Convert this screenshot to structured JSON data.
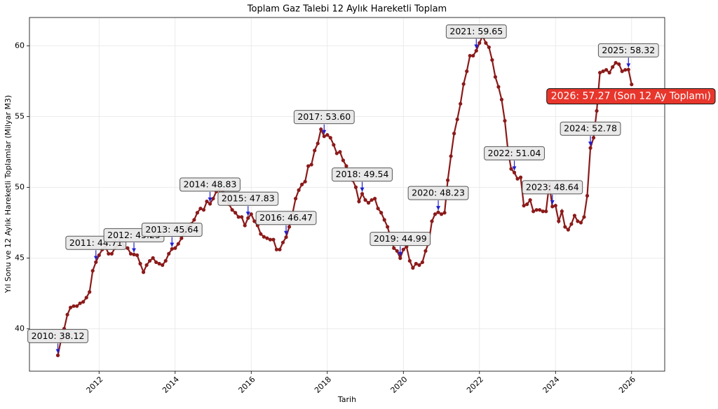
{
  "chart_data": {
    "type": "line",
    "title": "Toplam Gaz Talebi 12 Aylık Hareketli Toplam",
    "x_label": "Tarih",
    "y_label": "Yıl Sonu ve 12 Aylık Hareketli Toplamlar (Milyar M3)",
    "color": "#8b1a1a",
    "grid": true,
    "xlim": [
      2010.17,
      2026.87
    ],
    "ylim": [
      37,
      62
    ],
    "xticks": [
      2012,
      2014,
      2016,
      2018,
      2020,
      2022,
      2024,
      2026
    ],
    "yticks": [
      40,
      45,
      50,
      55,
      60
    ],
    "x": [
      2010.917,
      2011,
      2011.083,
      2011.167,
      2011.25,
      2011.333,
      2011.417,
      2011.5,
      2011.583,
      2011.667,
      2011.75,
      2011.833,
      2011.917,
      2012,
      2012.083,
      2012.167,
      2012.25,
      2012.333,
      2012.417,
      2012.5,
      2012.583,
      2012.667,
      2012.75,
      2012.833,
      2012.917,
      2013,
      2013.083,
      2013.167,
      2013.25,
      2013.333,
      2013.417,
      2013.5,
      2013.583,
      2013.667,
      2013.75,
      2013.833,
      2013.917,
      2014,
      2014.083,
      2014.167,
      2014.25,
      2014.333,
      2014.417,
      2014.5,
      2014.583,
      2014.667,
      2014.75,
      2014.833,
      2014.917,
      2015,
      2015.083,
      2015.167,
      2015.25,
      2015.333,
      2015.417,
      2015.5,
      2015.583,
      2015.667,
      2015.75,
      2015.833,
      2015.917,
      2016,
      2016.083,
      2016.167,
      2016.25,
      2016.333,
      2016.417,
      2016.5,
      2016.583,
      2016.667,
      2016.75,
      2016.833,
      2016.917,
      2017,
      2017.083,
      2017.167,
      2017.25,
      2017.333,
      2017.417,
      2017.5,
      2017.583,
      2017.667,
      2017.75,
      2017.833,
      2017.917,
      2018,
      2018.083,
      2018.167,
      2018.25,
      2018.333,
      2018.417,
      2018.5,
      2018.583,
      2018.667,
      2018.75,
      2018.833,
      2018.917,
      2019,
      2019.083,
      2019.167,
      2019.25,
      2019.333,
      2019.417,
      2019.5,
      2019.583,
      2019.667,
      2019.75,
      2019.833,
      2019.917,
      2020,
      2020.083,
      2020.167,
      2020.25,
      2020.333,
      2020.417,
      2020.5,
      2020.583,
      2020.667,
      2020.75,
      2020.833,
      2020.917,
      2021,
      2021.083,
      2021.167,
      2021.25,
      2021.333,
      2021.417,
      2021.5,
      2021.583,
      2021.667,
      2021.75,
      2021.833,
      2021.917,
      2022,
      2022.083,
      2022.167,
      2022.25,
      2022.333,
      2022.417,
      2022.5,
      2022.583,
      2022.667,
      2022.75,
      2022.833,
      2022.917,
      2023,
      2023.083,
      2023.167,
      2023.25,
      2023.333,
      2023.417,
      2023.5,
      2023.583,
      2023.667,
      2023.75,
      2023.833,
      2023.917,
      2024,
      2024.083,
      2024.167,
      2024.25,
      2024.333,
      2024.417,
      2024.5,
      2024.583,
      2024.667,
      2024.75,
      2024.833,
      2024.917,
      2025,
      2025.083,
      2025.167,
      2025.25,
      2025.333,
      2025.417,
      2025.5,
      2025.583,
      2025.667,
      2025.75,
      2025.833,
      2025.917,
      2026
    ],
    "values": [
      38.12,
      39.2,
      40.0,
      41.0,
      41.5,
      41.6,
      41.6,
      41.8,
      41.9,
      42.2,
      42.6,
      44.1,
      44.71,
      45.2,
      45.6,
      45.8,
      45.3,
      45.3,
      45.7,
      45.9,
      46.2,
      45.8,
      45.7,
      45.3,
      45.25,
      45.2,
      44.6,
      44.0,
      44.5,
      44.8,
      45.0,
      44.7,
      44.6,
      44.5,
      44.8,
      45.3,
      45.64,
      45.7,
      46.0,
      46.4,
      46.8,
      47.2,
      47.4,
      47.7,
      48.2,
      48.5,
      48.4,
      49.0,
      48.83,
      49.2,
      49.7,
      49.8,
      49.7,
      49.3,
      48.8,
      48.4,
      48.2,
      47.9,
      47.9,
      47.3,
      47.83,
      48.1,
      47.6,
      47.3,
      46.7,
      46.5,
      46.4,
      46.3,
      46.3,
      45.6,
      45.6,
      46.1,
      46.47,
      47.2,
      48.1,
      49.2,
      49.8,
      50.2,
      50.4,
      51.5,
      51.6,
      52.6,
      53.1,
      54.1,
      53.6,
      53.7,
      53.5,
      53.0,
      52.4,
      52.5,
      51.9,
      51.5,
      50.8,
      50.5,
      50.0,
      49.0,
      49.54,
      49.1,
      48.9,
      49.1,
      49.2,
      48.5,
      48.2,
      47.7,
      47.2,
      46.4,
      45.7,
      45.5,
      44.99,
      45.6,
      45.8,
      44.8,
      44.3,
      44.6,
      44.5,
      44.7,
      45.5,
      46.1,
      47.6,
      48.1,
      48.23,
      48.1,
      48.2,
      50.5,
      52.2,
      53.8,
      54.8,
      55.9,
      57.3,
      58.2,
      59.3,
      59.3,
      59.65,
      60.2,
      60.7,
      60.2,
      59.9,
      59.0,
      57.8,
      57.1,
      56.2,
      54.7,
      52.6,
      51.3,
      51.04,
      50.6,
      50.7,
      48.7,
      48.8,
      49.1,
      48.3,
      48.4,
      48.4,
      48.3,
      48.3,
      50.2,
      48.64,
      48.7,
      47.6,
      48.3,
      47.2,
      47.0,
      47.4,
      48.0,
      47.6,
      47.5,
      47.9,
      49.4,
      52.78,
      53.5,
      55.4,
      58.1,
      58.2,
      58.3,
      58.1,
      58.5,
      58.8,
      58.7,
      58.2,
      58.3,
      58.32,
      57.27
    ],
    "annotations": [
      {
        "text": "2010: 38.12",
        "x": 2010.917,
        "y": 38.12
      },
      {
        "text": "2011: 44.71",
        "x": 2011.917,
        "y": 44.71
      },
      {
        "text": "2012: 45.25",
        "x": 2012.917,
        "y": 45.25
      },
      {
        "text": "2013: 45.64",
        "x": 2013.917,
        "y": 45.64
      },
      {
        "text": "2014: 48.83",
        "x": 2014.917,
        "y": 48.83
      },
      {
        "text": "2015: 47.83",
        "x": 2015.917,
        "y": 47.83
      },
      {
        "text": "2016: 46.47",
        "x": 2016.917,
        "y": 46.47
      },
      {
        "text": "2017: 53.60",
        "x": 2017.917,
        "y": 53.6
      },
      {
        "text": "2018: 49.54",
        "x": 2018.917,
        "y": 49.54
      },
      {
        "text": "2019: 44.99",
        "x": 2019.917,
        "y": 44.99
      },
      {
        "text": "2020: 48.23",
        "x": 2020.917,
        "y": 48.23
      },
      {
        "text": "2021: 59.65",
        "x": 2021.917,
        "y": 59.65
      },
      {
        "text": "2022: 51.04",
        "x": 2022.917,
        "y": 51.04
      },
      {
        "text": "2023: 48.64",
        "x": 2023.917,
        "y": 48.64
      },
      {
        "text": "2024: 52.78",
        "x": 2024.917,
        "y": 52.78
      },
      {
        "text": "2025: 58.32",
        "x": 2025.917,
        "y": 58.32
      }
    ],
    "highlight": {
      "text": "2026: 57.27 (Son 12 Ay Toplamı)",
      "x": 2026,
      "y": 57.27,
      "color": "#e8362c"
    }
  }
}
